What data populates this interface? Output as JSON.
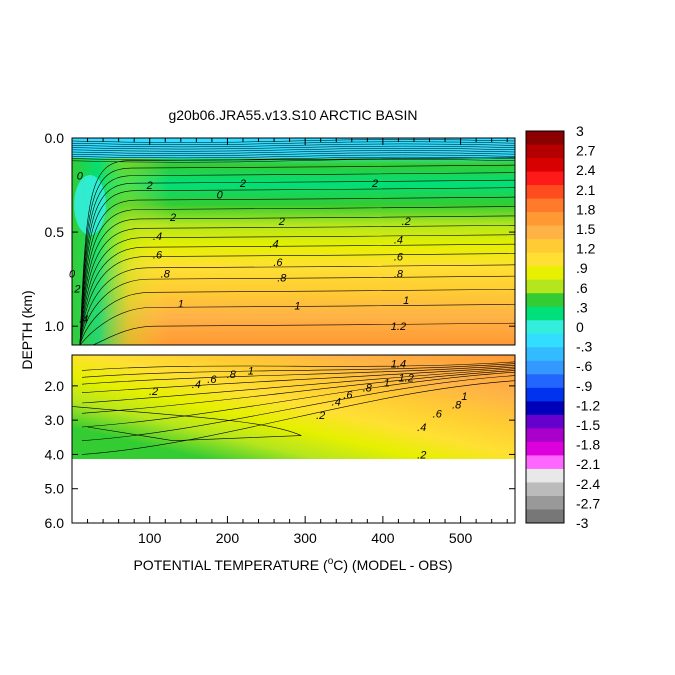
{
  "chart_data": {
    "type": "heatmap",
    "title": "g20b06.JRA55.v13.S10 ARCTIC BASIN",
    "xlabel": "POTENTIAL TEMPERATURE (°C) (MODEL - OBS)",
    "xlabel_prefix": "POTENTIAL TEMPERATURE (",
    "xlabel_sup": "o",
    "xlabel_suffix": "C) (MODEL - OBS)",
    "ylabel": "DEPTH (km)",
    "x_ticks": [
      "100",
      "200",
      "300",
      "400",
      "500"
    ],
    "x_tick_values": [
      100,
      200,
      300,
      400,
      500
    ],
    "xlim": [
      0,
      570
    ],
    "upper_panel": {
      "ylim": [
        0.0,
        1.1
      ],
      "y_ticks": [
        "0.0",
        "0.5",
        "1.0"
      ],
      "y_tick_values": [
        0.0,
        0.5,
        1.0
      ]
    },
    "lower_panel": {
      "ylim": [
        1.1,
        6.0
      ],
      "y_ticks": [
        "2.0",
        "3.0",
        "4.0",
        "5.0",
        "6.0"
      ],
      "y_tick_values": [
        2.0,
        3.0,
        4.0,
        5.0,
        6.0
      ],
      "data_max_depth": 4.1
    },
    "colorbar": {
      "labels": [
        "3",
        "2.7",
        "2.4",
        "2.1",
        "1.8",
        "1.5",
        "1.2",
        ".9",
        ".6",
        ".3",
        "0",
        "-.3",
        "-.6",
        "-.9",
        "-1.2",
        "-1.5",
        "-1.8",
        "-2.1",
        "-2.4",
        "-2.7",
        "-3"
      ],
      "colors": [
        "#8b0000",
        "#b40000",
        "#d80000",
        "#ff1a1a",
        "#ff4c1f",
        "#ff7a2a",
        "#ff9933",
        "#ffb347",
        "#ffcc33",
        "#ffe033",
        "#e6f000",
        "#b5e61d",
        "#33cc33",
        "#00e07a",
        "#33eedd",
        "#33ddff",
        "#33bbff",
        "#3399ff",
        "#2266ff",
        "#0033ee",
        "#0000bb",
        "#6600cc",
        "#aa00cc",
        "#dd00dd",
        "#ff66ff",
        "#e8e8e8",
        "#bbbbbb",
        "#999999",
        "#777777"
      ]
    },
    "contour_labels": [
      {
        "panel": "upper",
        "x": 100,
        "depth": 0.25,
        "text": "2"
      },
      {
        "panel": "upper",
        "x": 220,
        "depth": 0.24,
        "text": "2"
      },
      {
        "panel": "upper",
        "x": 390,
        "depth": 0.24,
        "text": "2"
      },
      {
        "panel": "upper",
        "x": 190,
        "depth": 0.3,
        "text": "0"
      },
      {
        "panel": "upper",
        "x": 10,
        "depth": 0.2,
        "text": "0"
      },
      {
        "panel": "upper",
        "x": 130,
        "depth": 0.42,
        "text": "2"
      },
      {
        "panel": "upper",
        "x": 270,
        "depth": 0.44,
        "text": "2"
      },
      {
        "panel": "upper",
        "x": 430,
        "depth": 0.44,
        "text": ".2"
      },
      {
        "panel": "upper",
        "x": 110,
        "depth": 0.52,
        "text": ".4"
      },
      {
        "panel": "upper",
        "x": 260,
        "depth": 0.56,
        "text": ".4"
      },
      {
        "panel": "upper",
        "x": 420,
        "depth": 0.54,
        "text": ".4"
      },
      {
        "panel": "upper",
        "x": 110,
        "depth": 0.62,
        "text": ".6"
      },
      {
        "panel": "upper",
        "x": 265,
        "depth": 0.66,
        "text": ".6"
      },
      {
        "panel": "upper",
        "x": 420,
        "depth": 0.63,
        "text": ".6"
      },
      {
        "panel": "upper",
        "x": 120,
        "depth": 0.72,
        "text": ".8"
      },
      {
        "panel": "upper",
        "x": 270,
        "depth": 0.74,
        "text": ".8"
      },
      {
        "panel": "upper",
        "x": 420,
        "depth": 0.72,
        "text": ".8"
      },
      {
        "panel": "upper",
        "x": 140,
        "depth": 0.88,
        "text": "1"
      },
      {
        "panel": "upper",
        "x": 290,
        "depth": 0.89,
        "text": "1"
      },
      {
        "panel": "upper",
        "x": 430,
        "depth": 0.86,
        "text": "1"
      },
      {
        "panel": "upper",
        "x": 420,
        "depth": 1.0,
        "text": "1.2"
      },
      {
        "panel": "upper",
        "x": 0,
        "depth": 0.72,
        "text": "0"
      },
      {
        "panel": "upper",
        "x": 5,
        "depth": 0.8,
        "text": ".2"
      },
      {
        "panel": "upper",
        "x": 15,
        "depth": 0.96,
        "text": ".4"
      },
      {
        "panel": "lower",
        "x": 230,
        "depth": 1.55,
        "text": "1"
      },
      {
        "panel": "lower",
        "x": 205,
        "depth": 1.65,
        "text": ".8"
      },
      {
        "panel": "lower",
        "x": 180,
        "depth": 1.8,
        "text": ".6"
      },
      {
        "panel": "lower",
        "x": 160,
        "depth": 1.95,
        "text": ".4"
      },
      {
        "panel": "lower",
        "x": 105,
        "depth": 2.15,
        "text": ".2"
      },
      {
        "panel": "lower",
        "x": 320,
        "depth": 2.85,
        "text": ".2"
      },
      {
        "panel": "lower",
        "x": 340,
        "depth": 2.45,
        "text": ".4"
      },
      {
        "panel": "lower",
        "x": 355,
        "depth": 2.25,
        "text": ".6"
      },
      {
        "panel": "lower",
        "x": 380,
        "depth": 2.05,
        "text": ".8"
      },
      {
        "panel": "lower",
        "x": 405,
        "depth": 1.9,
        "text": "1"
      },
      {
        "panel": "lower",
        "x": 430,
        "depth": 1.75,
        "text": "1.2"
      },
      {
        "panel": "lower",
        "x": 420,
        "depth": 1.35,
        "text": "1.4"
      },
      {
        "panel": "lower",
        "x": 495,
        "depth": 2.55,
        "text": ".8"
      },
      {
        "panel": "lower",
        "x": 505,
        "depth": 2.3,
        "text": "1"
      },
      {
        "panel": "lower",
        "x": 470,
        "depth": 2.8,
        "text": ".6"
      },
      {
        "panel": "lower",
        "x": 450,
        "depth": 3.2,
        "text": ".4"
      },
      {
        "panel": "lower",
        "x": 450,
        "depth": 4.0,
        "text": ".2"
      }
    ]
  }
}
